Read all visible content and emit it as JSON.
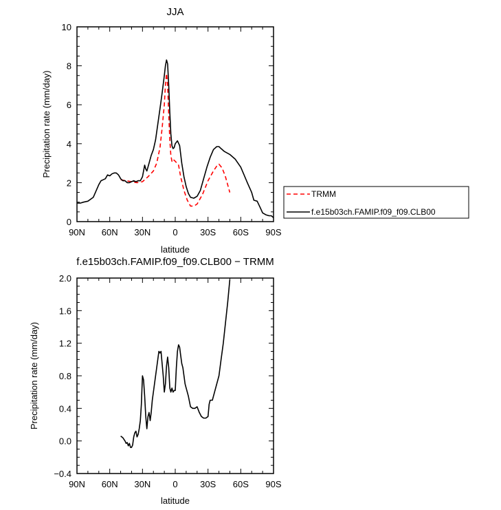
{
  "chart_data": [
    {
      "type": "line",
      "title": "JJA",
      "xlabel": "latitude",
      "ylabel": "Precipitation rate (mm/day)",
      "xlim": [
        90,
        -90
      ],
      "ylim": [
        0,
        10
      ],
      "xticks": [
        {
          "v": 90,
          "label": "90N"
        },
        {
          "v": 60,
          "label": "60N"
        },
        {
          "v": 30,
          "label": "30N"
        },
        {
          "v": 0,
          "label": "0"
        },
        {
          "v": -30,
          "label": "30S"
        },
        {
          "v": -60,
          "label": "60S"
        },
        {
          "v": -90,
          "label": "90S"
        }
      ],
      "yticks": [
        {
          "v": 0,
          "label": "0"
        },
        {
          "v": 2,
          "label": "2"
        },
        {
          "v": 4,
          "label": "4"
        },
        {
          "v": 6,
          "label": "6"
        },
        {
          "v": 8,
          "label": "8"
        },
        {
          "v": 10,
          "label": "10"
        }
      ],
      "legend_position": "right",
      "series": [
        {
          "name": "TRMM",
          "color": "#ff0000",
          "dash": true,
          "x": [
            50,
            45,
            40,
            35,
            30,
            25,
            20,
            17,
            14,
            12,
            10,
            9,
            8,
            7,
            6,
            5,
            4,
            3,
            2,
            1,
            0,
            -3,
            -5,
            -8,
            -11,
            -14,
            -17,
            -20,
            -25,
            -30,
            -35,
            -38,
            -40,
            -43,
            -46,
            -50
          ],
          "y": [
            2.15,
            2.1,
            2.05,
            2.0,
            2.05,
            2.3,
            2.6,
            3.0,
            3.8,
            4.8,
            6.0,
            7.0,
            7.6,
            7.0,
            5.5,
            4.2,
            3.4,
            3.1,
            3.2,
            3.15,
            3.1,
            2.9,
            2.3,
            1.6,
            1.1,
            0.8,
            0.8,
            0.9,
            1.4,
            2.1,
            2.6,
            2.85,
            2.95,
            2.75,
            2.3,
            1.5
          ]
        },
        {
          "name": "f.e15b03ch.FAMIP.f09_f09.CLB00",
          "color": "#000000",
          "dash": false,
          "x": [
            90,
            87,
            84,
            80,
            75,
            70,
            68,
            66,
            64,
            62,
            60,
            58,
            56,
            54,
            52,
            50,
            48,
            46,
            44,
            42,
            40,
            38,
            36,
            34,
            32,
            30,
            28,
            27,
            26,
            25,
            24,
            22,
            20,
            18,
            16,
            14,
            12,
            10,
            9,
            8,
            7,
            6,
            5,
            4,
            3,
            2,
            1,
            0,
            -2,
            -4,
            -6,
            -8,
            -10,
            -12,
            -14,
            -17,
            -20,
            -23,
            -26,
            -29,
            -32,
            -35,
            -38,
            -40,
            -42,
            -45,
            -50,
            -55,
            -60,
            -63,
            -66,
            -70,
            -72,
            -75,
            -78,
            -80,
            -83,
            -86,
            -88,
            -90
          ],
          "y": [
            0.95,
            0.95,
            1.0,
            1.05,
            1.25,
            1.9,
            2.1,
            2.15,
            2.2,
            2.4,
            2.35,
            2.45,
            2.5,
            2.5,
            2.4,
            2.2,
            2.1,
            2.1,
            2.0,
            2.0,
            2.05,
            2.1,
            2.05,
            2.1,
            2.1,
            2.3,
            2.9,
            2.7,
            2.6,
            2.8,
            3.0,
            3.4,
            3.7,
            4.2,
            5.0,
            5.8,
            6.6,
            7.5,
            8.0,
            8.3,
            8.1,
            7.0,
            5.6,
            4.5,
            3.9,
            3.75,
            3.8,
            4.0,
            4.15,
            3.9,
            3.0,
            2.3,
            1.8,
            1.45,
            1.25,
            1.2,
            1.3,
            1.6,
            2.2,
            2.8,
            3.3,
            3.7,
            3.85,
            3.85,
            3.75,
            3.6,
            3.45,
            3.2,
            2.8,
            2.4,
            2.0,
            1.5,
            1.1,
            1.05,
            0.7,
            0.45,
            0.35,
            0.3,
            0.3,
            0.2
          ]
        }
      ]
    },
    {
      "type": "line",
      "title": "f.e15b03ch.FAMIP.f09_f09.CLB00 − TRMM",
      "xlabel": "latitude",
      "ylabel": "Precipitation rate (mm/day)",
      "xlim": [
        90,
        -90
      ],
      "ylim": [
        -0.4,
        2.0
      ],
      "xticks": [
        {
          "v": 90,
          "label": "90N"
        },
        {
          "v": 60,
          "label": "60N"
        },
        {
          "v": 30,
          "label": "30N"
        },
        {
          "v": 0,
          "label": "0"
        },
        {
          "v": -30,
          "label": "30S"
        },
        {
          "v": -60,
          "label": "60S"
        },
        {
          "v": -90,
          "label": "90S"
        }
      ],
      "yticks": [
        {
          "v": -0.4,
          "label": "−0.4"
        },
        {
          "v": 0.0,
          "label": "0.0"
        },
        {
          "v": 0.4,
          "label": "0.4"
        },
        {
          "v": 0.8,
          "label": "0.8"
        },
        {
          "v": 1.2,
          "label": "1.2"
        },
        {
          "v": 1.6,
          "label": "1.6"
        },
        {
          "v": 2.0,
          "label": "2.0"
        }
      ],
      "series": [
        {
          "color": "#000000",
          "dash": false,
          "x": [
            50,
            48,
            46,
            45,
            44,
            43,
            42,
            41,
            40,
            39,
            38,
            37,
            36,
            35,
            34,
            33,
            32,
            31,
            30,
            29,
            28,
            27,
            26,
            25,
            24,
            23,
            22,
            21,
            20,
            19,
            18,
            17,
            16,
            15,
            14,
            13,
            12,
            11,
            10,
            9,
            8,
            7,
            6,
            5,
            4,
            3,
            2,
            1,
            0,
            -1,
            -2,
            -3,
            -4,
            -5,
            -6,
            -7,
            -8,
            -9,
            -10,
            -12,
            -14,
            -16,
            -18,
            -20,
            -22,
            -24,
            -26,
            -28,
            -30,
            -31,
            -32,
            -34,
            -36,
            -38,
            -40,
            -42,
            -44,
            -46,
            -48,
            -50
          ],
          "y": [
            0.06,
            0.04,
            0.0,
            -0.03,
            -0.02,
            -0.06,
            -0.03,
            -0.08,
            -0.08,
            -0.05,
            0.05,
            0.1,
            0.12,
            0.05,
            0.08,
            0.15,
            0.25,
            0.45,
            0.8,
            0.75,
            0.55,
            0.3,
            0.15,
            0.3,
            0.35,
            0.25,
            0.35,
            0.5,
            0.6,
            0.7,
            0.8,
            0.9,
            1.0,
            1.1,
            1.08,
            1.1,
            0.95,
            0.8,
            0.6,
            0.7,
            0.92,
            1.03,
            0.9,
            0.65,
            0.6,
            0.65,
            0.6,
            0.62,
            0.62,
            0.9,
            1.1,
            1.18,
            1.15,
            1.05,
            0.95,
            0.9,
            0.8,
            0.7,
            0.65,
            0.55,
            0.42,
            0.4,
            0.4,
            0.42,
            0.35,
            0.3,
            0.28,
            0.28,
            0.3,
            0.45,
            0.5,
            0.5,
            0.6,
            0.7,
            0.8,
            1.0,
            1.2,
            1.45,
            1.7,
            1.98
          ]
        }
      ]
    }
  ]
}
